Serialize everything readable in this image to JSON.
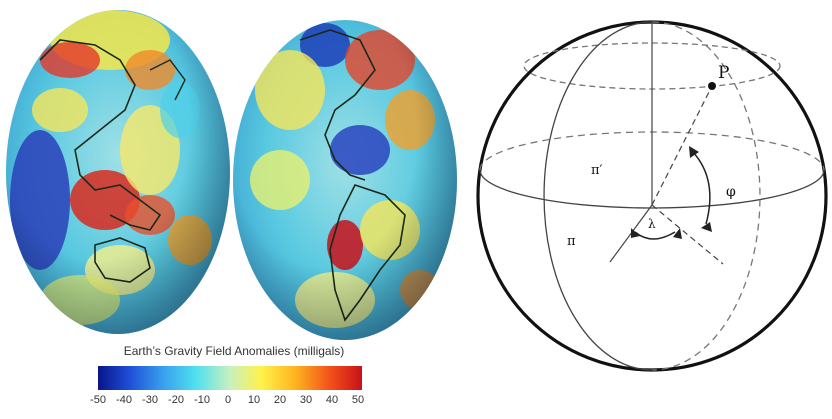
{
  "geoid_figure": {
    "colorbar_title": "Earth’s Gravity Field Anomalies (milligals)",
    "colorbar_ticks": [
      "-50",
      "-40",
      "-30",
      "-20",
      "-10",
      "0",
      "10",
      "20",
      "30",
      "40",
      "50"
    ],
    "colorbar_colors": [
      "#08148c",
      "#1f4fd8",
      "#39a2ee",
      "#4fe0ee",
      "#c9f0c0",
      "#fff24a",
      "#ffb21e",
      "#f2501a",
      "#c8111a"
    ]
  },
  "sphere_figure": {
    "labels": {
      "point": "P",
      "pi_prime": "π′",
      "pi": "π",
      "lambda": "λ",
      "phi": "φ"
    }
  }
}
